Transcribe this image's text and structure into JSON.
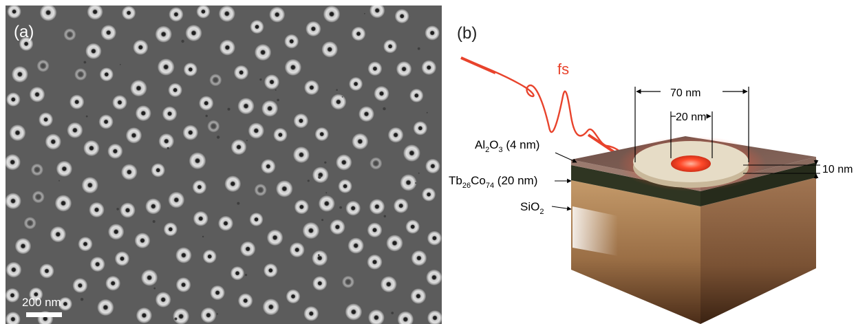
{
  "panel_a": {
    "label": "(a)",
    "scale_bar_text": "200 nm",
    "colors": {
      "background": "#5c5c5c",
      "ring": "#d2d2d2",
      "hole": "#1e1e1e"
    },
    "description_icon": "sem-micrograph-nanorings"
  },
  "panel_b": {
    "label": "(b)",
    "pulse_label": "fs",
    "dim_outer": "70 nm",
    "dim_inner": "20 nm",
    "dim_height": "10 nm",
    "layer_al2o3": {
      "base": "Al",
      "sub1": "2",
      "mid": "O",
      "sub2": "3",
      "rest": " (4 nm)"
    },
    "layer_tbco": {
      "base": "Tb",
      "sub1": "26",
      "mid": "Co",
      "sub2": "74",
      "rest": " (20 nm)"
    },
    "layer_sio2": {
      "base": "SiO",
      "sub1": "2"
    },
    "colors": {
      "pulse": "#e8432c",
      "cap": "#7a5a52",
      "film": "#3a3f2a",
      "substrate": "#b08a5c",
      "ring": "#e6dcc6",
      "glow": "#ff5a3c"
    }
  }
}
